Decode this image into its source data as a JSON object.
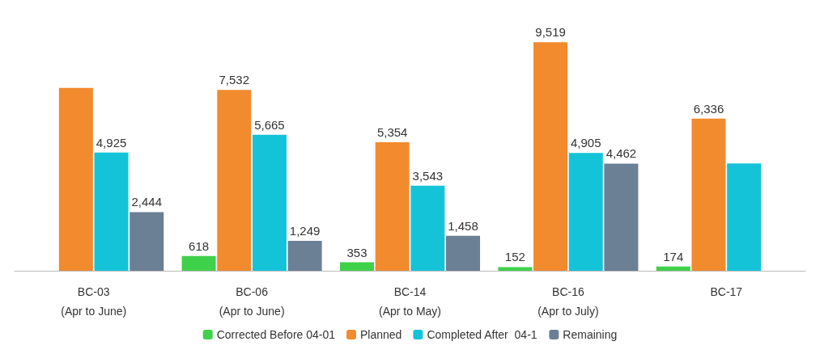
{
  "chart_data": {
    "type": "bar",
    "categories": [
      "BC-03\n(Apr to June)",
      "BC-06\n(Apr to June)",
      "BC-14\n(Apr to May)",
      "BC-16\n(Apr to July)",
      "BC-17"
    ],
    "series": [
      {
        "name": "Corrected Before 04-01",
        "color": "#3fd14a",
        "values": [
          null,
          618,
          353,
          152,
          174
        ],
        "value_labels": [
          null,
          "618",
          "353",
          "152",
          "174"
        ]
      },
      {
        "name": "Planned",
        "color": "#f28a2e",
        "values": [
          7617,
          7532,
          5354,
          9519,
          6336
        ],
        "value_labels": [
          null,
          "7,532",
          "5,354",
          "9,519",
          "6,336"
        ]
      },
      {
        "name": "Completed After  04-1",
        "color": "#14c3d8",
        "values": [
          4925,
          5665,
          3543,
          4905,
          4470
        ],
        "value_labels": [
          "4,925",
          "5,665",
          "3,543",
          "4,905",
          null
        ]
      },
      {
        "name": "Remaining",
        "color": "#6b7f95",
        "values": [
          2444,
          1249,
          1458,
          4462,
          null
        ],
        "value_labels": [
          "2,444",
          "1,249",
          "1,458",
          "4,462",
          null
        ]
      }
    ],
    "legend": "bottom"
  }
}
